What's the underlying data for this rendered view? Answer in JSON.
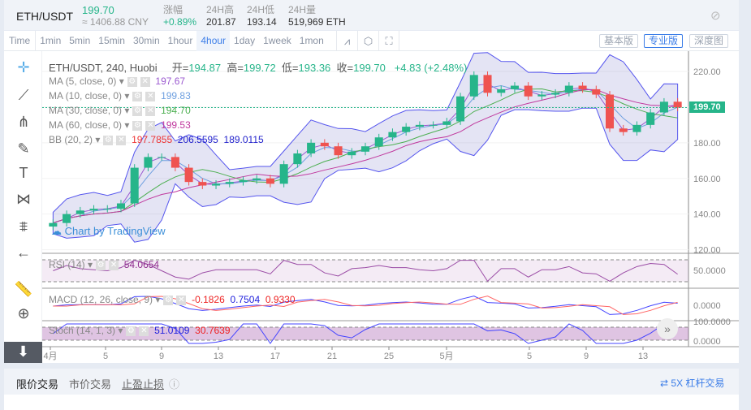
{
  "header": {
    "pair": "ETH/USDT",
    "last_price": "199.70",
    "cny": "≈ 1406.88 CNY",
    "change_label": "涨幅",
    "change": "+0.89%",
    "high_label": "24H高",
    "high": "201.87",
    "low_label": "24H低",
    "low": "193.14",
    "vol_label": "24H量",
    "vol": "519,969 ETH",
    "hide_icon": "eye-slash-icon"
  },
  "toolbar": {
    "intervals": [
      "Time",
      "1min",
      "5min",
      "15min",
      "30min",
      "1hour",
      "4hour",
      "1day",
      "1week",
      "1mon"
    ],
    "active": "4hour",
    "views": [
      "基本版",
      "专业版",
      "深度图"
    ],
    "active_view": "专业版"
  },
  "legend": {
    "title": "ETH/USDT, 240, Huobi",
    "o_label": "开=",
    "o": "194.87",
    "h_label": "高=",
    "h": "199.72",
    "l_label": "低=",
    "l": "193.36",
    "c_label": "收=",
    "c": "199.70",
    "chg": "+4.83 (+2.48%)",
    "ma": [
      {
        "label": "MA (5, close, 0)",
        "value": "197.67",
        "color": "#9b59d0"
      },
      {
        "label": "MA (10, close, 0)",
        "value": "199.83",
        "color": "#6fa0e0"
      },
      {
        "label": "MA (30, close, 0)",
        "value": "194.70",
        "color": "#4caf50"
      },
      {
        "label": "MA (60, close, 0)",
        "value": "199.53",
        "color": "#c0399e"
      }
    ],
    "bb": {
      "label": "BB (20, 2)",
      "v1": "197.7855",
      "v2": "206.5595",
      "v3": "189.0115"
    },
    "rsi": {
      "label": "RSI (14)",
      "value": "54.0654"
    },
    "macd": {
      "label": "MACD (12, 26, close, 9)",
      "v1": "-0.1826",
      "v2": "0.7504",
      "v3": "0.9330"
    },
    "stoch": {
      "label": "Stoch (14, 1, 3)",
      "v1": "51.0109",
      "v2": "30.7639"
    }
  },
  "watermark": "Chart by TradingView",
  "price_tag": "199.70",
  "colors": {
    "up": "#26b58a",
    "down": "#ef5350",
    "accent": "#3b7de8"
  },
  "chart_data": {
    "type": "candlestick",
    "y_ticks": [
      "220.00",
      "200.00",
      "180.00",
      "160.00",
      "140.00",
      "120.00"
    ],
    "ylim": [
      118,
      230
    ],
    "rsi_tick": "50.0000",
    "macd_tick": "0.0000",
    "stoch_ticks": [
      "100.0000",
      "0.0000"
    ],
    "x_ticks": [
      "4月",
      "5",
      "9",
      "13",
      "17",
      "21",
      "25",
      "5月",
      "5",
      "9",
      "13"
    ],
    "closes": [
      135,
      140,
      142,
      143,
      143,
      146,
      166,
      172,
      172,
      166,
      158,
      156,
      157,
      158,
      159,
      160,
      157,
      168,
      174,
      180,
      178,
      173,
      175,
      178,
      183,
      186,
      189,
      190,
      190,
      192,
      206,
      218,
      208,
      210,
      212,
      206,
      207,
      208,
      212,
      210,
      207,
      188,
      186,
      190,
      197,
      203,
      199.7
    ]
  },
  "bottom": {
    "tabs": [
      "限价交易",
      "市价交易",
      "止盈止损"
    ],
    "active": "限价交易",
    "leverage": "5X 杠杆交易"
  }
}
